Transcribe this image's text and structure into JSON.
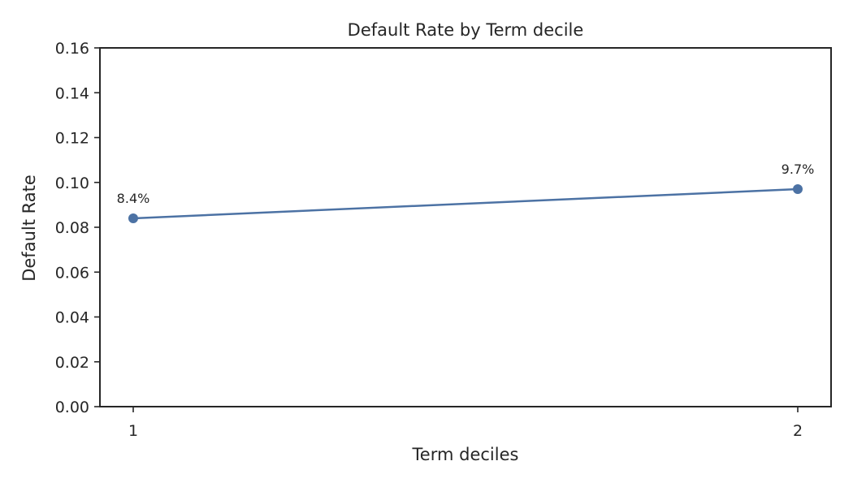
{
  "chart_data": {
    "type": "line",
    "title": "Default Rate by Term decile",
    "xlabel": "Term deciles",
    "ylabel": "Default Rate",
    "categories": [
      "1",
      "2"
    ],
    "series": [
      {
        "values": [
          0.084,
          0.097
        ],
        "data_labels": [
          "8.4%",
          "9.7%"
        ],
        "color": "#4c72a4",
        "marker": "circle"
      }
    ],
    "ylim": [
      0,
      0.16
    ],
    "yticks": [
      0.0,
      0.02,
      0.04,
      0.06,
      0.08,
      0.1,
      0.12,
      0.14,
      0.16
    ],
    "ytick_labels": [
      "0.00",
      "0.02",
      "0.04",
      "0.06",
      "0.08",
      "0.10",
      "0.12",
      "0.14",
      "0.16"
    ],
    "grid": false,
    "legend": "none"
  }
}
